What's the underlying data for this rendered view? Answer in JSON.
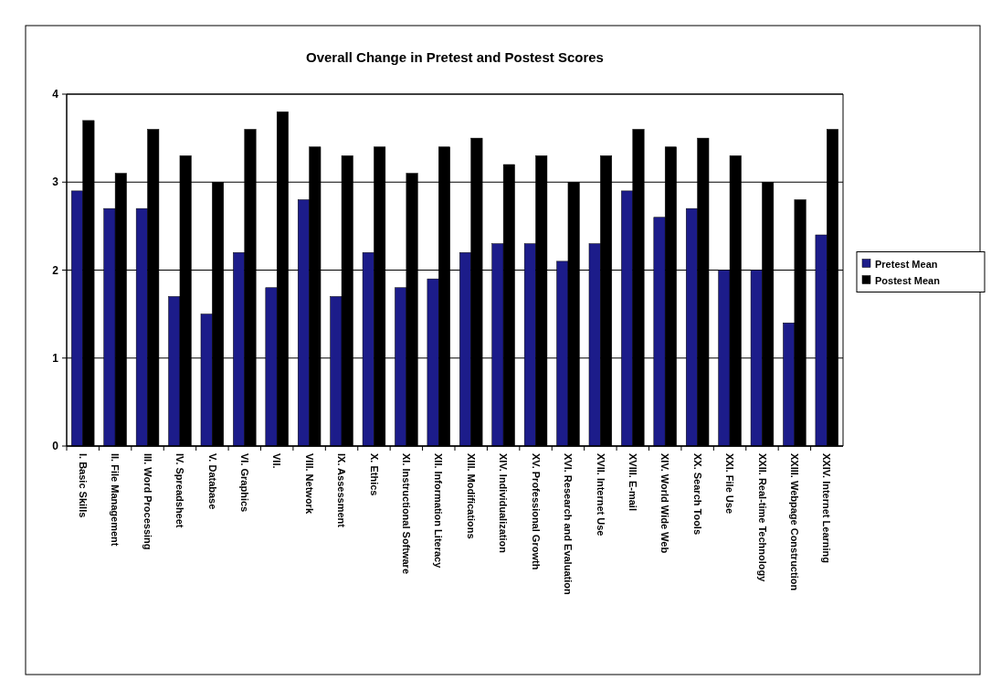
{
  "chart_data": {
    "type": "bar",
    "title": "Overall Change in Pretest and Postest Scores",
    "categories": [
      "I. Basic Skills",
      "II. File Management",
      "III. Word Processing",
      "IV. Spreadsheet",
      "V. Database",
      "VI. Graphics",
      "VII.",
      "VIII. Network",
      "IX. Assessment",
      "X. Ethics",
      "XI. Instructional Software",
      "XII. Information Literacy",
      "XIII. Modifications",
      "XIV. Individualization",
      "XV. Professional Growth",
      "XVI. Research and Evaluation",
      "XVII. Internet Use",
      "XVIII. E-mail",
      "XIV. World Wide Web",
      "XX. Search Tools",
      "XXI. File Use",
      "XXII. Real-time Technology",
      "XXIII. Webpage Construction",
      "XXIV. Internet Learning"
    ],
    "series": [
      {
        "name": "Pretest Mean",
        "color": "#1c1c8a",
        "values": [
          2.9,
          2.7,
          2.7,
          1.7,
          1.5,
          2.2,
          1.8,
          2.8,
          1.7,
          2.2,
          1.8,
          1.9,
          2.2,
          2.3,
          2.3,
          2.1,
          2.3,
          2.9,
          2.6,
          2.7,
          2.0,
          2.0,
          1.4,
          2.4
        ]
      },
      {
        "name": "Postest Mean",
        "color": "#000000",
        "values": [
          3.7,
          3.1,
          3.6,
          3.3,
          3.0,
          3.6,
          3.8,
          3.4,
          3.3,
          3.4,
          3.1,
          3.4,
          3.5,
          3.2,
          3.3,
          3.0,
          3.3,
          3.6,
          3.4,
          3.5,
          3.3,
          3.0,
          2.8,
          3.6
        ]
      }
    ],
    "ylim": [
      0,
      4
    ],
    "yticks": [
      0,
      1,
      2,
      3,
      4
    ],
    "grid": "y",
    "legend": "right"
  }
}
